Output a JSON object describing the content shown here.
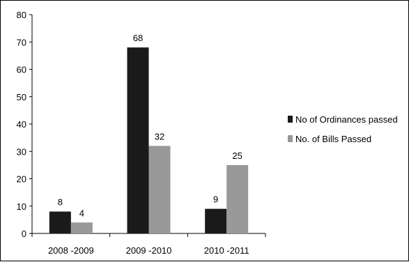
{
  "chart_data": {
    "type": "bar",
    "categories": [
      "2008 -2009",
      "2009 -2010",
      "2010 -2011"
    ],
    "series": [
      {
        "name": "No of Ordinances passed",
        "values": [
          8,
          68,
          9
        ],
        "color": "#1a1a1a"
      },
      {
        "name": "No. of Bills Passed",
        "values": [
          4,
          32,
          25
        ],
        "color": "#999999"
      }
    ],
    "ylim": [
      0,
      80
    ],
    "yticks": [
      0,
      10,
      20,
      30,
      40,
      50,
      60,
      70,
      80
    ],
    "grid": false,
    "legend_position": "right",
    "title": "",
    "xlabel": "",
    "ylabel": ""
  }
}
